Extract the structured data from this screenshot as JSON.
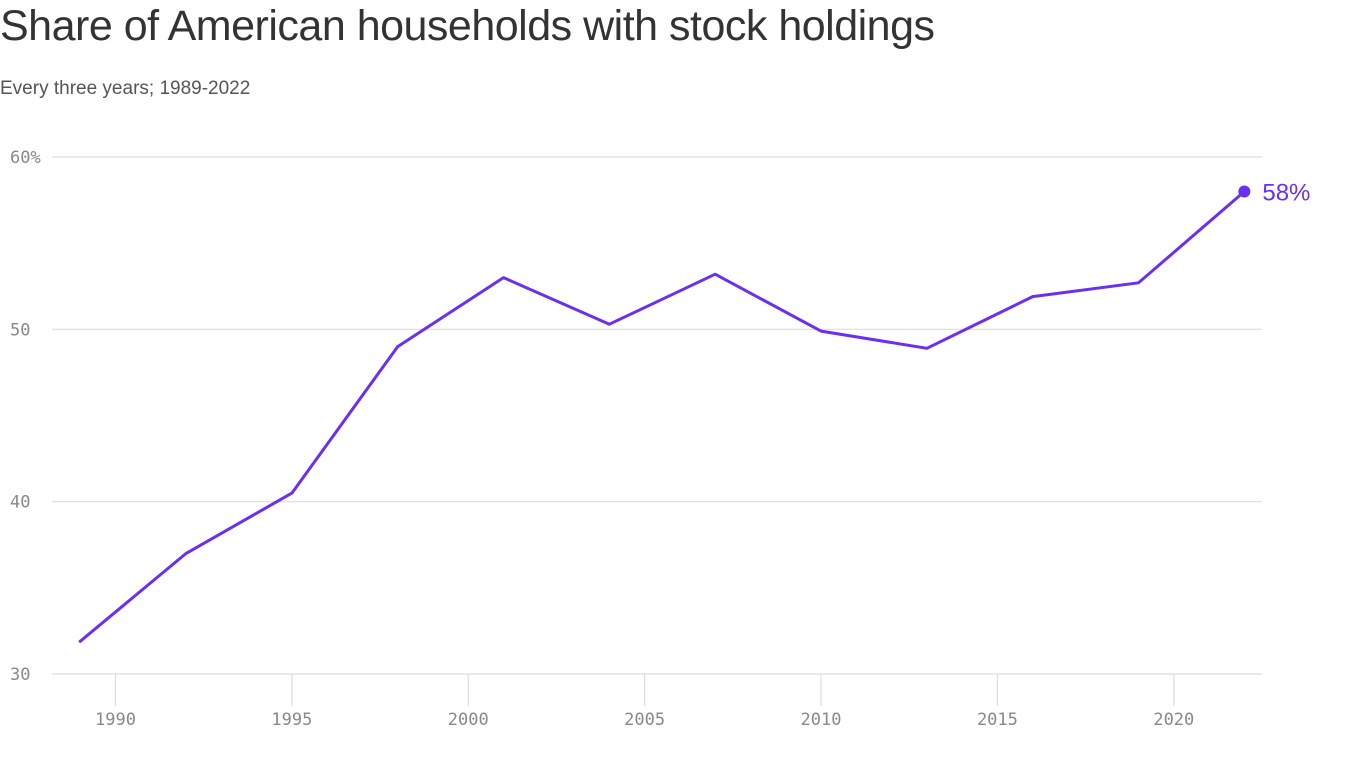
{
  "title": "Share of American households with stock holdings",
  "subtitle": "Every three years; 1989-2022",
  "colors": {
    "line": "#6a2ff0",
    "grid": "#dddddd",
    "axis_text": "#888888",
    "title": "#333333"
  },
  "chart_data": {
    "type": "line",
    "title": "Share of American households with stock holdings",
    "subtitle": "Every three years; 1989-2022",
    "xlabel": "",
    "ylabel": "",
    "x": [
      1989,
      1992,
      1995,
      1998,
      2001,
      2004,
      2007,
      2010,
      2013,
      2016,
      2019,
      2022
    ],
    "series": [
      {
        "values": [
          31.9,
          37.0,
          40.5,
          49.0,
          53.0,
          50.3,
          53.2,
          49.9,
          48.9,
          51.9,
          52.7,
          58.0
        ]
      }
    ],
    "xlim": [
      1988.2,
      2022.5
    ],
    "ylim": [
      30,
      60
    ],
    "x_ticks": [
      1990,
      1995,
      2000,
      2005,
      2010,
      2015,
      2020
    ],
    "x_tick_labels": [
      "1990",
      "1995",
      "2000",
      "2005",
      "2010",
      "2015",
      "2020"
    ],
    "y_ticks": [
      30,
      40,
      50,
      60
    ],
    "y_tick_labels": [
      "30",
      "40",
      "50",
      "60%"
    ],
    "grid": true,
    "end_label": "58%"
  }
}
